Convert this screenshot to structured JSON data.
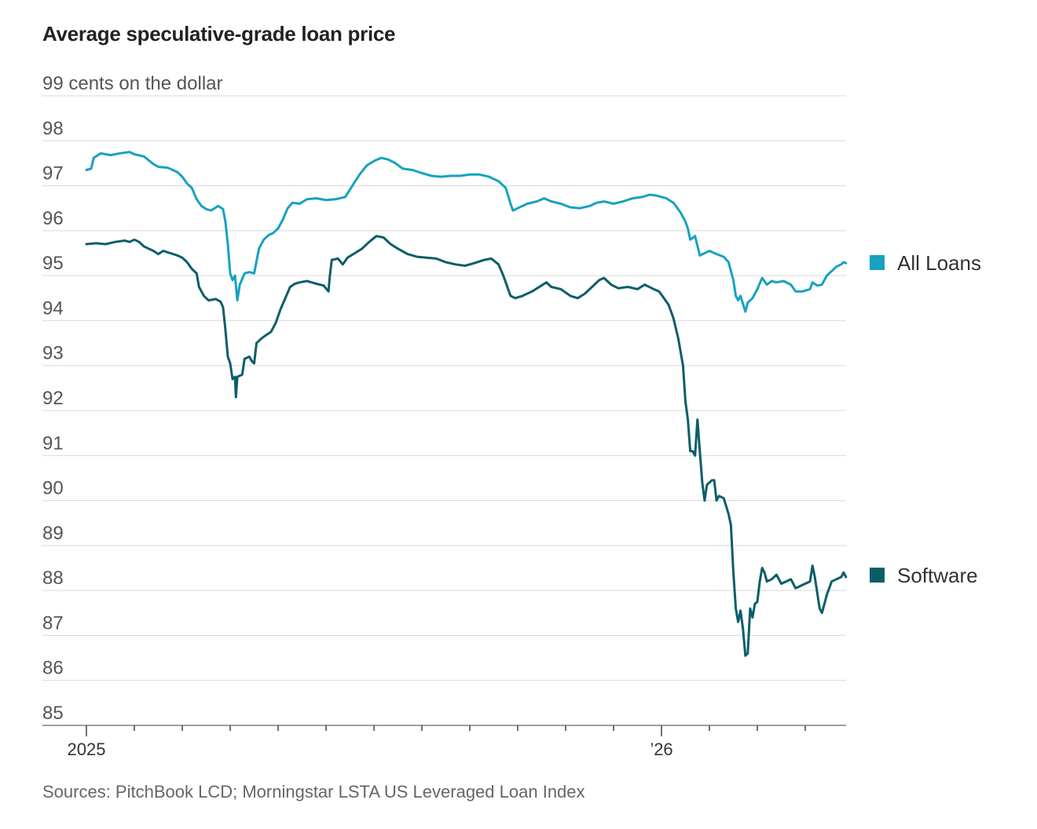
{
  "title": "Average speculative-grade loan price",
  "source": "Sources: PitchBook LCD; Morningstar LSTA US Leveraged Loan Index",
  "colors": {
    "all_loans": "#17a2bf",
    "software": "#0b5e68",
    "grid": "#d9d9d9",
    "axis": "#888888"
  },
  "chart_data": {
    "type": "line",
    "title": "Average speculative-grade loan price",
    "ylabel": "cents on the dollar",
    "ylim": [
      85,
      99
    ],
    "yticks": [
      {
        "value": 99,
        "label": "99 cents on the dollar"
      },
      {
        "value": 98,
        "label": "98"
      },
      {
        "value": 97,
        "label": "97"
      },
      {
        "value": 96,
        "label": "96"
      },
      {
        "value": 95,
        "label": "95"
      },
      {
        "value": 94,
        "label": "94"
      },
      {
        "value": 93,
        "label": "93"
      },
      {
        "value": 92,
        "label": "92"
      },
      {
        "value": 91,
        "label": "91"
      },
      {
        "value": 90,
        "label": "90"
      },
      {
        "value": 89,
        "label": "89"
      },
      {
        "value": 88,
        "label": "88"
      },
      {
        "value": 87,
        "label": "87"
      },
      {
        "value": 86,
        "label": "86"
      },
      {
        "value": 85,
        "label": "85"
      }
    ],
    "xlim": [
      0,
      15.9
    ],
    "x_unit": "months since Jan 1, 2025",
    "xtick_months": [
      0,
      1,
      2,
      3,
      4,
      5,
      6,
      7,
      8,
      9,
      10,
      11,
      12,
      13,
      14,
      15
    ],
    "xlabels": [
      {
        "month": 0,
        "label": "2025"
      },
      {
        "month": 12,
        "label": "’26"
      }
    ],
    "series": [
      {
        "name": "All Loans",
        "points": [
          [
            0.0,
            97.35
          ],
          [
            0.1,
            97.38
          ],
          [
            0.15,
            97.62
          ],
          [
            0.3,
            97.72
          ],
          [
            0.5,
            97.68
          ],
          [
            0.7,
            97.72
          ],
          [
            0.9,
            97.75
          ],
          [
            1.0,
            97.7
          ],
          [
            1.2,
            97.65
          ],
          [
            1.4,
            97.48
          ],
          [
            1.5,
            97.42
          ],
          [
            1.7,
            97.4
          ],
          [
            1.9,
            97.3
          ],
          [
            2.0,
            97.2
          ],
          [
            2.1,
            97.05
          ],
          [
            2.2,
            96.95
          ],
          [
            2.3,
            96.7
          ],
          [
            2.4,
            96.55
          ],
          [
            2.5,
            96.48
          ],
          [
            2.6,
            96.45
          ],
          [
            2.75,
            96.55
          ],
          [
            2.85,
            96.48
          ],
          [
            2.9,
            96.2
          ],
          [
            2.95,
            95.7
          ],
          [
            3.0,
            95.05
          ],
          [
            3.05,
            94.9
          ],
          [
            3.1,
            95.0
          ],
          [
            3.15,
            94.45
          ],
          [
            3.2,
            94.8
          ],
          [
            3.3,
            95.05
          ],
          [
            3.4,
            95.08
          ],
          [
            3.5,
            95.05
          ],
          [
            3.6,
            95.6
          ],
          [
            3.7,
            95.8
          ],
          [
            3.8,
            95.9
          ],
          [
            3.9,
            95.95
          ],
          [
            4.0,
            96.05
          ],
          [
            4.1,
            96.25
          ],
          [
            4.2,
            96.5
          ],
          [
            4.3,
            96.62
          ],
          [
            4.45,
            96.6
          ],
          [
            4.6,
            96.7
          ],
          [
            4.8,
            96.72
          ],
          [
            5.0,
            96.68
          ],
          [
            5.2,
            96.7
          ],
          [
            5.4,
            96.75
          ],
          [
            5.55,
            97.0
          ],
          [
            5.7,
            97.25
          ],
          [
            5.85,
            97.45
          ],
          [
            6.0,
            97.55
          ],
          [
            6.15,
            97.62
          ],
          [
            6.3,
            97.58
          ],
          [
            6.45,
            97.5
          ],
          [
            6.6,
            97.38
          ],
          [
            6.8,
            97.35
          ],
          [
            7.0,
            97.28
          ],
          [
            7.2,
            97.22
          ],
          [
            7.4,
            97.2
          ],
          [
            7.6,
            97.22
          ],
          [
            7.8,
            97.22
          ],
          [
            8.0,
            97.25
          ],
          [
            8.2,
            97.25
          ],
          [
            8.4,
            97.2
          ],
          [
            8.6,
            97.1
          ],
          [
            8.75,
            96.95
          ],
          [
            8.85,
            96.6
          ],
          [
            8.9,
            96.45
          ],
          [
            9.0,
            96.5
          ],
          [
            9.2,
            96.6
          ],
          [
            9.4,
            96.65
          ],
          [
            9.55,
            96.72
          ],
          [
            9.7,
            96.65
          ],
          [
            9.9,
            96.6
          ],
          [
            10.1,
            96.52
          ],
          [
            10.3,
            96.5
          ],
          [
            10.5,
            96.55
          ],
          [
            10.65,
            96.62
          ],
          [
            10.8,
            96.65
          ],
          [
            11.0,
            96.6
          ],
          [
            11.2,
            96.65
          ],
          [
            11.4,
            96.72
          ],
          [
            11.6,
            96.75
          ],
          [
            11.75,
            96.8
          ],
          [
            11.9,
            96.78
          ],
          [
            12.1,
            96.72
          ],
          [
            12.25,
            96.62
          ],
          [
            12.4,
            96.4
          ],
          [
            12.5,
            96.2
          ],
          [
            12.55,
            96.05
          ],
          [
            12.6,
            95.8
          ],
          [
            12.7,
            95.88
          ],
          [
            12.8,
            95.45
          ],
          [
            12.9,
            95.5
          ],
          [
            13.0,
            95.55
          ],
          [
            13.15,
            95.48
          ],
          [
            13.3,
            95.42
          ],
          [
            13.4,
            95.3
          ],
          [
            13.5,
            94.9
          ],
          [
            13.55,
            94.55
          ],
          [
            13.6,
            94.45
          ],
          [
            13.65,
            94.55
          ],
          [
            13.75,
            94.2
          ],
          [
            13.8,
            94.4
          ],
          [
            13.9,
            94.5
          ],
          [
            14.0,
            94.7
          ],
          [
            14.1,
            94.95
          ],
          [
            14.2,
            94.8
          ],
          [
            14.3,
            94.88
          ],
          [
            14.4,
            94.85
          ],
          [
            14.55,
            94.88
          ],
          [
            14.7,
            94.8
          ],
          [
            14.8,
            94.65
          ],
          [
            14.95,
            94.65
          ],
          [
            15.1,
            94.7
          ],
          [
            15.15,
            94.85
          ],
          [
            15.25,
            94.78
          ],
          [
            15.35,
            94.8
          ],
          [
            15.45,
            95.0
          ],
          [
            15.55,
            95.1
          ],
          [
            15.65,
            95.2
          ],
          [
            15.75,
            95.25
          ],
          [
            15.8,
            95.3
          ],
          [
            15.85,
            95.28
          ]
        ]
      },
      {
        "name": "Software",
        "points": [
          [
            0.0,
            95.7
          ],
          [
            0.2,
            95.72
          ],
          [
            0.4,
            95.7
          ],
          [
            0.6,
            95.75
          ],
          [
            0.8,
            95.78
          ],
          [
            0.9,
            95.75
          ],
          [
            1.0,
            95.8
          ],
          [
            1.1,
            95.75
          ],
          [
            1.2,
            95.65
          ],
          [
            1.3,
            95.6
          ],
          [
            1.4,
            95.55
          ],
          [
            1.5,
            95.48
          ],
          [
            1.6,
            95.55
          ],
          [
            1.75,
            95.5
          ],
          [
            1.9,
            95.45
          ],
          [
            2.0,
            95.4
          ],
          [
            2.1,
            95.3
          ],
          [
            2.2,
            95.15
          ],
          [
            2.3,
            95.05
          ],
          [
            2.35,
            94.75
          ],
          [
            2.45,
            94.55
          ],
          [
            2.55,
            94.45
          ],
          [
            2.7,
            94.48
          ],
          [
            2.8,
            94.42
          ],
          [
            2.85,
            94.3
          ],
          [
            2.9,
            93.8
          ],
          [
            2.95,
            93.2
          ],
          [
            3.0,
            93.05
          ],
          [
            3.05,
            92.7
          ],
          [
            3.1,
            92.75
          ],
          [
            3.12,
            92.3
          ],
          [
            3.15,
            92.75
          ],
          [
            3.25,
            92.8
          ],
          [
            3.3,
            93.15
          ],
          [
            3.4,
            93.2
          ],
          [
            3.45,
            93.1
          ],
          [
            3.5,
            93.05
          ],
          [
            3.55,
            93.5
          ],
          [
            3.65,
            93.6
          ],
          [
            3.75,
            93.68
          ],
          [
            3.85,
            93.75
          ],
          [
            3.95,
            93.95
          ],
          [
            4.05,
            94.25
          ],
          [
            4.15,
            94.5
          ],
          [
            4.25,
            94.75
          ],
          [
            4.35,
            94.82
          ],
          [
            4.45,
            94.85
          ],
          [
            4.6,
            94.88
          ],
          [
            4.7,
            94.85
          ],
          [
            4.8,
            94.82
          ],
          [
            4.95,
            94.78
          ],
          [
            5.05,
            94.65
          ],
          [
            5.08,
            95.0
          ],
          [
            5.12,
            95.35
          ],
          [
            5.25,
            95.38
          ],
          [
            5.35,
            95.25
          ],
          [
            5.45,
            95.4
          ],
          [
            5.6,
            95.5
          ],
          [
            5.75,
            95.6
          ],
          [
            5.9,
            95.75
          ],
          [
            6.05,
            95.88
          ],
          [
            6.2,
            95.85
          ],
          [
            6.35,
            95.7
          ],
          [
            6.5,
            95.6
          ],
          [
            6.7,
            95.48
          ],
          [
            6.9,
            95.42
          ],
          [
            7.1,
            95.4
          ],
          [
            7.3,
            95.38
          ],
          [
            7.5,
            95.3
          ],
          [
            7.7,
            95.25
          ],
          [
            7.9,
            95.22
          ],
          [
            8.1,
            95.28
          ],
          [
            8.3,
            95.35
          ],
          [
            8.45,
            95.38
          ],
          [
            8.6,
            95.25
          ],
          [
            8.7,
            95.0
          ],
          [
            8.8,
            94.7
          ],
          [
            8.85,
            94.55
          ],
          [
            8.95,
            94.5
          ],
          [
            9.1,
            94.55
          ],
          [
            9.3,
            94.65
          ],
          [
            9.45,
            94.75
          ],
          [
            9.6,
            94.85
          ],
          [
            9.7,
            94.75
          ],
          [
            9.9,
            94.7
          ],
          [
            10.1,
            94.55
          ],
          [
            10.25,
            94.5
          ],
          [
            10.4,
            94.6
          ],
          [
            10.55,
            94.75
          ],
          [
            10.7,
            94.9
          ],
          [
            10.8,
            94.95
          ],
          [
            10.95,
            94.8
          ],
          [
            11.1,
            94.72
          ],
          [
            11.3,
            94.75
          ],
          [
            11.5,
            94.7
          ],
          [
            11.65,
            94.8
          ],
          [
            11.8,
            94.72
          ],
          [
            11.95,
            94.65
          ],
          [
            12.05,
            94.5
          ],
          [
            12.15,
            94.35
          ],
          [
            12.25,
            94.05
          ],
          [
            12.35,
            93.6
          ],
          [
            12.45,
            93.0
          ],
          [
            12.5,
            92.2
          ],
          [
            12.55,
            91.8
          ],
          [
            12.6,
            91.1
          ],
          [
            12.65,
            91.1
          ],
          [
            12.7,
            91.0
          ],
          [
            12.75,
            91.8
          ],
          [
            12.8,
            91.1
          ],
          [
            12.85,
            90.4
          ],
          [
            12.9,
            90.0
          ],
          [
            12.95,
            90.35
          ],
          [
            13.0,
            90.4
          ],
          [
            13.05,
            90.45
          ],
          [
            13.1,
            90.45
          ],
          [
            13.15,
            90.0
          ],
          [
            13.2,
            90.1
          ],
          [
            13.3,
            90.05
          ],
          [
            13.4,
            89.7
          ],
          [
            13.45,
            89.45
          ],
          [
            13.5,
            88.4
          ],
          [
            13.55,
            87.6
          ],
          [
            13.6,
            87.3
          ],
          [
            13.65,
            87.55
          ],
          [
            13.7,
            87.15
          ],
          [
            13.75,
            86.55
          ],
          [
            13.8,
            86.6
          ],
          [
            13.85,
            87.6
          ],
          [
            13.9,
            87.4
          ],
          [
            13.95,
            87.7
          ],
          [
            14.0,
            87.75
          ],
          [
            14.05,
            88.2
          ],
          [
            14.1,
            88.5
          ],
          [
            14.15,
            88.4
          ],
          [
            14.2,
            88.2
          ],
          [
            14.3,
            88.25
          ],
          [
            14.4,
            88.35
          ],
          [
            14.5,
            88.15
          ],
          [
            14.6,
            88.2
          ],
          [
            14.7,
            88.25
          ],
          [
            14.8,
            88.05
          ],
          [
            14.9,
            88.1
          ],
          [
            15.0,
            88.15
          ],
          [
            15.1,
            88.2
          ],
          [
            15.15,
            88.55
          ],
          [
            15.2,
            88.3
          ],
          [
            15.3,
            87.6
          ],
          [
            15.35,
            87.5
          ],
          [
            15.45,
            87.9
          ],
          [
            15.55,
            88.2
          ],
          [
            15.65,
            88.25
          ],
          [
            15.75,
            88.3
          ],
          [
            15.8,
            88.4
          ],
          [
            15.85,
            88.3
          ]
        ]
      }
    ],
    "legend": [
      {
        "name": "All Loans",
        "label": "All Loans",
        "color": "#17a2bf",
        "at_value": 95.3
      },
      {
        "name": "Software",
        "label": "Software",
        "color": "#0b5e68",
        "at_value": 88.35
      }
    ]
  }
}
